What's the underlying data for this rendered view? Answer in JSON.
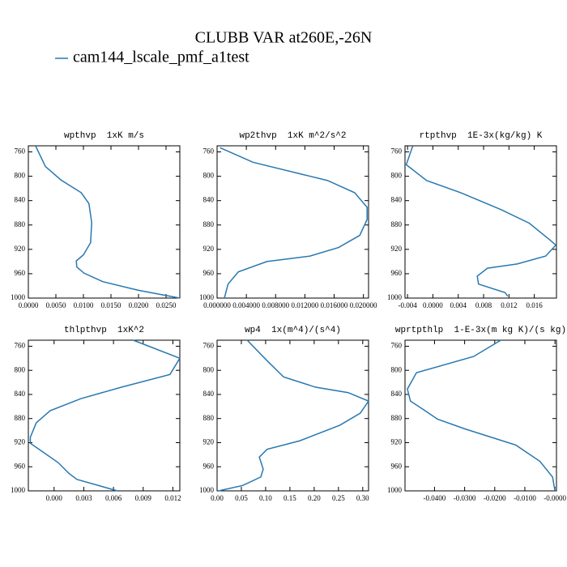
{
  "title": "CLUBB VAR at260E,-26N",
  "legend": {
    "name": "cam144_lscale_pmf_a1test",
    "color": "#2878b0"
  },
  "chart_data": [
    {
      "type": "line",
      "title": "wpthvp  1xK m/s",
      "y": [
        750,
        784,
        806,
        827,
        845,
        876,
        909,
        929,
        939,
        949,
        959,
        973,
        987,
        1000
      ],
      "values": [
        0.0013,
        0.0031,
        0.0059,
        0.0096,
        0.011,
        0.0115,
        0.0113,
        0.01,
        0.0087,
        0.0088,
        0.0101,
        0.0135,
        0.0199,
        0.0275
      ],
      "xlim": [
        0,
        0.0275
      ],
      "ylim": [
        1000,
        750
      ],
      "xticks": [
        {
          "value": 0,
          "label": "0.0000"
        },
        {
          "value": 0.005,
          "label": "0.0050"
        },
        {
          "value": 0.01,
          "label": "0.0100"
        },
        {
          "value": 0.015,
          "label": "0.0150"
        },
        {
          "value": 0.02,
          "label": "0.0200"
        },
        {
          "value": 0.025,
          "label": "0.0250"
        }
      ],
      "yticks": [
        760,
        800,
        840,
        880,
        920,
        960,
        1000
      ]
    },
    {
      "type": "line",
      "title": "wp2thvp  1xK m^2/s^2",
      "y": [
        753,
        777,
        797,
        807,
        827,
        851,
        871,
        897,
        917,
        931,
        940,
        957,
        977,
        1000
      ],
      "values": [
        0.0004,
        0.0049,
        0.0117,
        0.0151,
        0.0188,
        0.0205,
        0.0205,
        0.0195,
        0.0166,
        0.0127,
        0.0068,
        0.0029,
        0.0015,
        0.001
      ],
      "xlim": [
        0,
        0.0207
      ],
      "ylim": [
        1000,
        750
      ],
      "xticks": [
        {
          "value": 0,
          "label": "0.000000"
        },
        {
          "value": 0.004,
          "label": "0.004000"
        },
        {
          "value": 0.008,
          "label": "0.008000"
        },
        {
          "value": 0.012,
          "label": "0.012000"
        },
        {
          "value": 0.016,
          "label": "0.016000"
        },
        {
          "value": 0.02,
          "label": "0.020000"
        }
      ],
      "yticks": [
        760,
        800,
        840,
        880,
        920,
        960,
        1000
      ]
    },
    {
      "type": "line",
      "title": "rtpthvp  1E-3x(kg/kg) K",
      "y": [
        751,
        781,
        807,
        827,
        855,
        877,
        904,
        913,
        931,
        944,
        951,
        964,
        977,
        991,
        997
      ],
      "values": [
        -0.0032,
        -0.0042,
        -0.001,
        0.0044,
        0.0108,
        0.0152,
        0.0184,
        0.0194,
        0.0178,
        0.0133,
        0.0086,
        0.007,
        0.0072,
        0.0114,
        0.0118
      ],
      "xlim": [
        -0.0044,
        0.0195
      ],
      "ylim": [
        1000,
        750
      ],
      "xticks": [
        -0.004,
        {
          "value": 0,
          "label": "0.0000"
        },
        0.004,
        0.008,
        0.012,
        0.016
      ],
      "yticks": [
        760,
        800,
        840,
        880,
        920,
        960,
        1000
      ]
    },
    {
      "type": "line",
      "title": "thlpthvp  1xK^2",
      "y": [
        750,
        780,
        807,
        828,
        847,
        867,
        887,
        911,
        921,
        937,
        953,
        971,
        981,
        1000
      ],
      "values": [
        0.008,
        0.0127,
        0.0117,
        0.0068,
        0.0027,
        -0.0004,
        -0.0018,
        -0.0024,
        -0.0024,
        -0.001,
        0.0004,
        0.0015,
        0.0023,
        0.0064
      ],
      "xlim": [
        -0.0026,
        0.0127
      ],
      "ylim": [
        1000,
        750
      ],
      "xticks": [
        {
          "value": 0,
          "label": "0.000"
        },
        0.003,
        0.006,
        0.009,
        0.012
      ],
      "yticks": [
        760,
        800,
        840,
        880,
        920,
        960,
        1000
      ]
    },
    {
      "type": "line",
      "title": "wp4  1x(m^4)/(s^4)",
      "y": [
        750,
        784,
        811,
        828,
        837,
        851,
        871,
        891,
        917,
        931,
        944,
        964,
        977,
        991,
        1000
      ],
      "values": [
        0.062,
        0.103,
        0.137,
        0.203,
        0.27,
        0.312,
        0.295,
        0.253,
        0.17,
        0.103,
        0.087,
        0.095,
        0.09,
        0.053,
        0.003
      ],
      "xlim": [
        0,
        0.312
      ],
      "ylim": [
        1000,
        750
      ],
      "xticks": [
        {
          "value": 0,
          "label": "0.00"
        },
        0.05,
        {
          "value": 0.1,
          "label": "0.10"
        },
        0.15,
        {
          "value": 0.2,
          "label": "0.20"
        },
        0.25,
        {
          "value": 0.3,
          "label": "0.30"
        }
      ],
      "yticks": [
        760,
        800,
        840,
        880,
        920,
        960,
        1000
      ]
    },
    {
      "type": "line",
      "title": "wprtpthlp  1-E-3x(m kg K)/(s kg)",
      "y": [
        750,
        777,
        804,
        831,
        851,
        864,
        881,
        897,
        924,
        951,
        977,
        1000
      ],
      "values": [
        -0.018,
        -0.027,
        -0.046,
        -0.049,
        -0.048,
        -0.044,
        -0.039,
        -0.03,
        -0.013,
        -0.005,
        -0.0008,
        0
      ],
      "xlim": [
        -0.0498,
        0.0005
      ],
      "ylim": [
        1000,
        750
      ],
      "xticks": [
        {
          "value": -0.04,
          "label": "-0.0400"
        },
        {
          "value": -0.03,
          "label": "-0.0300"
        },
        {
          "value": -0.02,
          "label": "-0.0200"
        },
        {
          "value": -0.01,
          "label": "-0.0100"
        },
        {
          "value": 0,
          "label": "-0.0000"
        }
      ],
      "yticks": [
        760,
        800,
        840,
        880,
        920,
        960,
        1000
      ]
    }
  ]
}
